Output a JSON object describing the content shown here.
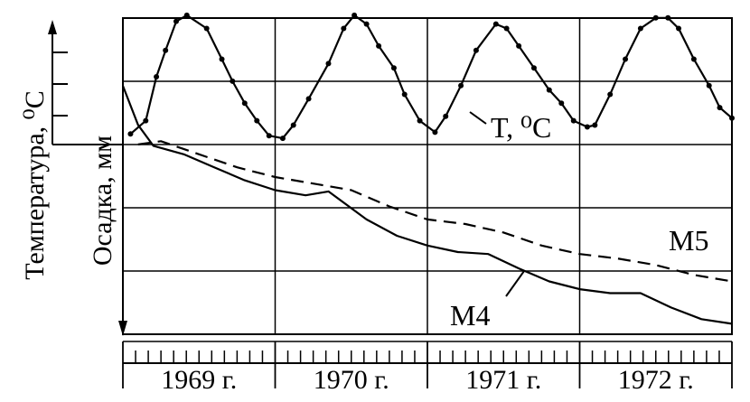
{
  "chart_data": {
    "type": "line",
    "ylabel_left": "Температура, ⁰C",
    "ylabel_inner": "Осадка, мм",
    "years": [
      "1969 г.",
      "1970 г.",
      "1971 г.",
      "1972 г."
    ],
    "x_range": [
      1969.0,
      1973.0
    ],
    "grid": true,
    "series": [
      {
        "name": "T, ⁰C",
        "label": "T, ⁰C",
        "style": "solid-dotted",
        "x": [
          1969.05,
          1969.15,
          1969.22,
          1969.28,
          1969.35,
          1969.42,
          1969.55,
          1969.65,
          1969.72,
          1969.8,
          1969.88,
          1969.96,
          1970.05,
          1970.12,
          1970.22,
          1970.35,
          1970.45,
          1970.52,
          1970.6,
          1970.68,
          1970.78,
          1970.85,
          1970.95,
          1971.05,
          1971.12,
          1971.22,
          1971.32,
          1971.45,
          1971.52,
          1971.6,
          1971.7,
          1971.8,
          1971.88,
          1971.96,
          1972.05,
          1972.1,
          1972.2,
          1972.3,
          1972.4,
          1972.5,
          1972.58,
          1972.65,
          1972.75,
          1972.85,
          1972.92,
          1973.0
        ],
        "y": [
          0.1,
          0.25,
          0.75,
          1.05,
          1.38,
          1.45,
          1.3,
          0.95,
          0.7,
          0.45,
          0.25,
          0.08,
          0.05,
          0.2,
          0.5,
          0.9,
          1.3,
          1.45,
          1.35,
          1.1,
          0.85,
          0.55,
          0.25,
          0.12,
          0.3,
          0.65,
          1.05,
          1.35,
          1.3,
          1.1,
          0.85,
          0.6,
          0.45,
          0.25,
          0.18,
          0.2,
          0.55,
          0.95,
          1.3,
          1.42,
          1.42,
          1.3,
          0.95,
          0.65,
          0.4,
          0.28
        ]
      },
      {
        "name": "M4",
        "label": "M4",
        "style": "solid",
        "x": [
          1969.0,
          1969.1,
          1969.2,
          1969.4,
          1969.6,
          1969.8,
          1970.0,
          1970.2,
          1970.35,
          1970.6,
          1970.8,
          1971.0,
          1971.2,
          1971.4,
          1971.6,
          1971.8,
          1972.0,
          1972.2,
          1972.4,
          1972.6,
          1972.8,
          1973.0
        ],
        "y": [
          0.0,
          0.6,
          0.92,
          1.05,
          1.25,
          1.45,
          1.6,
          1.68,
          1.62,
          2.05,
          2.3,
          2.45,
          2.55,
          2.58,
          2.8,
          3.0,
          3.12,
          3.18,
          3.18,
          3.4,
          3.58,
          3.65
        ]
      },
      {
        "name": "M5",
        "label": "M5",
        "style": "dashed",
        "x": [
          1969.1,
          1969.25,
          1969.5,
          1969.75,
          1970.0,
          1970.25,
          1970.5,
          1970.75,
          1971.0,
          1971.25,
          1971.5,
          1971.75,
          1972.0,
          1972.25,
          1972.5,
          1972.75,
          1973.0
        ],
        "y": [
          0.9,
          0.85,
          1.05,
          1.25,
          1.4,
          1.5,
          1.6,
          1.85,
          2.05,
          2.12,
          2.25,
          2.45,
          2.58,
          2.65,
          2.75,
          2.9,
          3.0
        ]
      }
    ]
  }
}
